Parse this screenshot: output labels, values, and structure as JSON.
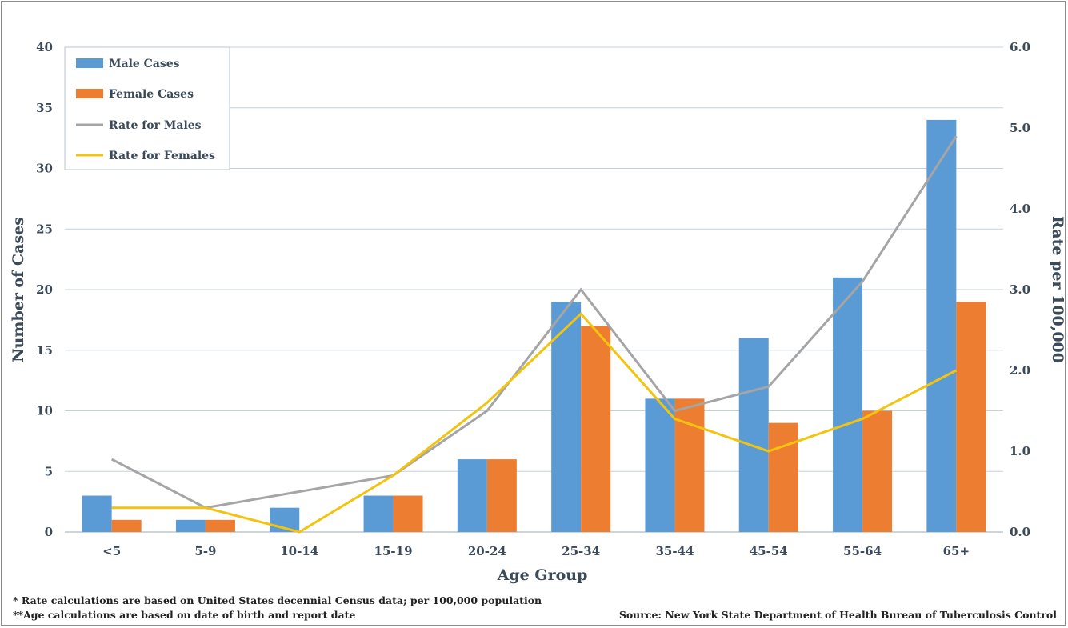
{
  "chart_data": {
    "type": "bar",
    "categories": [
      "<5",
      "5-9",
      "10-14",
      "15-19",
      "20-24",
      "25-34",
      "35-44",
      "45-54",
      "55-64",
      "65+"
    ],
    "series": [
      {
        "name": "Male Cases",
        "type": "bar",
        "axis": "left",
        "color": "#5b9bd5",
        "values": [
          3,
          1,
          2,
          3,
          6,
          19,
          11,
          16,
          21,
          34
        ]
      },
      {
        "name": "Female Cases",
        "type": "bar",
        "axis": "left",
        "color": "#ed7d31",
        "values": [
          1,
          1,
          0,
          3,
          6,
          17,
          11,
          9,
          10,
          19
        ]
      },
      {
        "name": "Rate for Males",
        "type": "line",
        "axis": "right",
        "color": "#a5a5a5",
        "values": [
          0.9,
          0.3,
          0.5,
          0.7,
          1.5,
          3.0,
          1.5,
          1.8,
          3.1,
          4.9
        ]
      },
      {
        "name": "Rate for Females",
        "type": "line",
        "axis": "right",
        "color": "#f2c40f",
        "values": [
          0.3,
          0.3,
          0.0,
          0.7,
          1.6,
          2.7,
          1.4,
          1.0,
          1.4,
          2.0
        ]
      }
    ],
    "xlabel": "Age Group",
    "ylabel": "Number of Cases",
    "y2label": "Rate per 100,000",
    "ylim": [
      0,
      40
    ],
    "y2lim": [
      0,
      6
    ],
    "yticks": [
      "0",
      "5",
      "10",
      "15",
      "20",
      "25",
      "30",
      "35",
      "40"
    ],
    "y2ticks": [
      "0.0",
      "1.0",
      "2.0",
      "3.0",
      "4.0",
      "5.0",
      "6.0"
    ],
    "grid": true,
    "legend": "top-left"
  },
  "footnotes": {
    "note1": "* Rate calculations are based on United States decennial Census data; per 100,000  population",
    "note2": "**Age calculations are based on date of birth and report date",
    "source": "Source: New York State Department of Health Bureau of Tuberculosis Control"
  }
}
